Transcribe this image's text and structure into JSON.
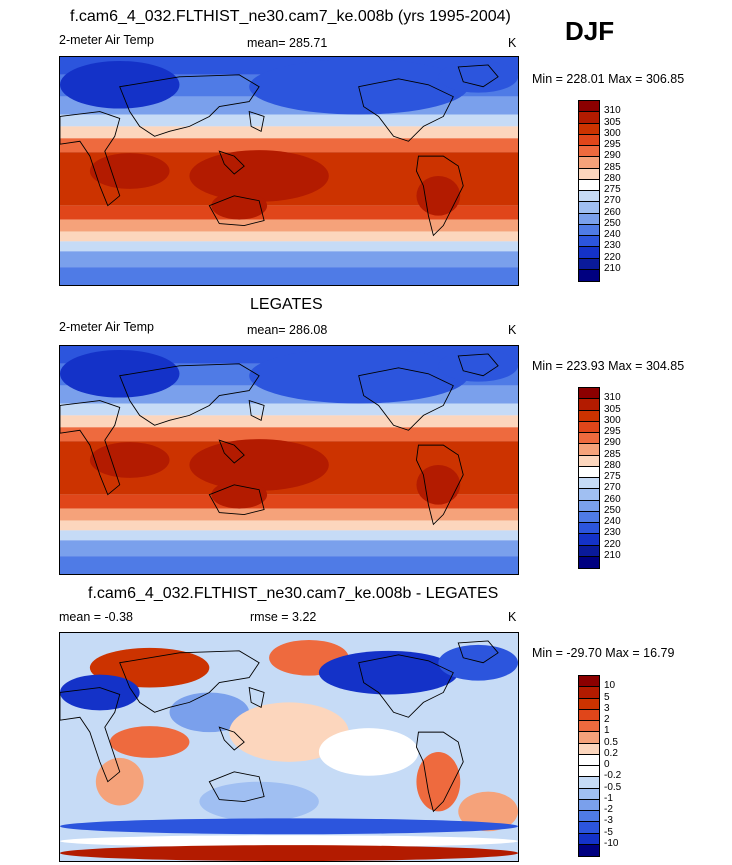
{
  "season": "DJF",
  "panels": [
    {
      "title": "f.cam6_4_032.FLTHIST_ne30.cam7_ke.008b (yrs 1995-2004)",
      "left_label": "2-meter Air Temp",
      "center_label": "mean= 285.71",
      "units": "K",
      "minmax": "Min = 228.01 Max = 306.85",
      "levels": [
        "310",
        "305",
        "300",
        "295",
        "290",
        "285",
        "280",
        "275",
        "270",
        "260",
        "250",
        "240",
        "230",
        "220",
        "210"
      ],
      "colors": [
        "#8b0000",
        "#b31b00",
        "#cc3300",
        "#e0461a",
        "#ee6a3e",
        "#f5a27a",
        "#fcd6bd",
        "#ffffff",
        "#c6dbf6",
        "#a0bff2",
        "#7aa0ec",
        "#4f7be6",
        "#2c55dd",
        "#1432c8",
        "#0a1a9a",
        "#000080"
      ],
      "type": "abs"
    },
    {
      "title": "LEGATES",
      "left_label": "2-meter Air Temp",
      "center_label": "mean= 286.08",
      "units": "K",
      "minmax": "Min = 223.93 Max = 304.85",
      "levels": [
        "310",
        "305",
        "300",
        "295",
        "290",
        "285",
        "280",
        "275",
        "270",
        "260",
        "250",
        "240",
        "230",
        "220",
        "210"
      ],
      "colors": [
        "#8b0000",
        "#b31b00",
        "#cc3300",
        "#e0461a",
        "#ee6a3e",
        "#f5a27a",
        "#fcd6bd",
        "#ffffff",
        "#c6dbf6",
        "#a0bff2",
        "#7aa0ec",
        "#4f7be6",
        "#2c55dd",
        "#1432c8",
        "#0a1a9a",
        "#000080"
      ],
      "type": "abs"
    },
    {
      "title": "f.cam6_4_032.FLTHIST_ne30.cam7_ke.008b - LEGATES",
      "left_label": "mean =  -0.38",
      "center_label": "rmse =   3.22",
      "units": "K",
      "minmax": "Min = -29.70 Max =  16.79",
      "levels": [
        "10",
        "5",
        "3",
        "2",
        "1",
        "0.5",
        "0.2",
        "0",
        "-0.2",
        "-0.5",
        "-1",
        "-2",
        "-3",
        "-5",
        "-10"
      ],
      "colors": [
        "#8b0000",
        "#b31b00",
        "#cc3300",
        "#e0461a",
        "#ee6a3e",
        "#f5a27a",
        "#fcd6bd",
        "#ffffff",
        "#ffffff",
        "#c6dbf6",
        "#a0bff2",
        "#7aa0ec",
        "#4f7be6",
        "#2c55dd",
        "#1432c8",
        "#000080"
      ],
      "type": "diff"
    }
  ]
}
